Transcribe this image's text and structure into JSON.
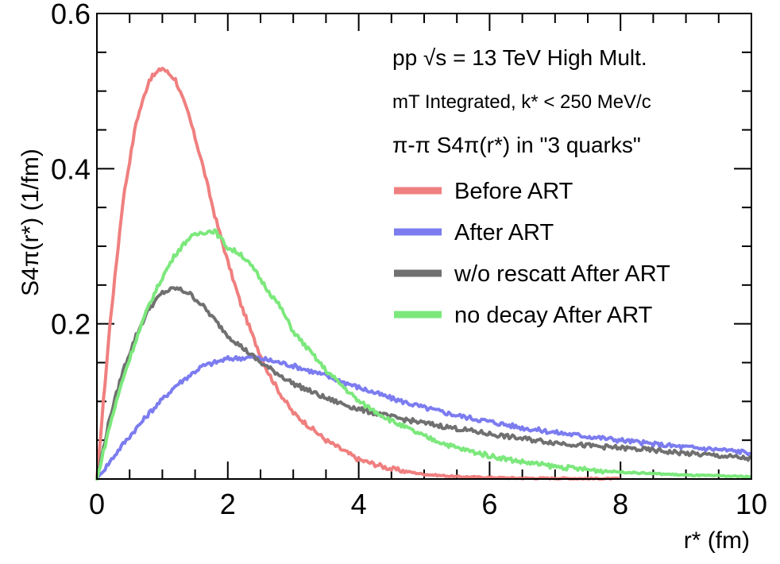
{
  "chart_data": {
    "type": "line",
    "xlabel": "r* (fm)",
    "ylabel": "S4π(r*) (1/fm)",
    "xlim": [
      0,
      10
    ],
    "ylim": [
      0,
      0.6
    ],
    "xticks": [
      0,
      2,
      4,
      6,
      8,
      10
    ],
    "yticks": [
      0.2,
      0.4,
      0.6
    ],
    "x_tick_labels": [
      "0",
      "2",
      "4",
      "6",
      "8",
      "10"
    ],
    "y_tick_labels": [
      "0.2",
      "0.4",
      "0.6"
    ],
    "annotations": {
      "line1": "pp √s = 13 TeV High Mult.",
      "line2": "mT Integrated, k* < 250 MeV/c",
      "line3": "π-π S4π(r*) in \"3 quarks\""
    },
    "legend_position": "top-right",
    "series": [
      {
        "name": "Before ART",
        "color": "#f07f7f",
        "x": [
          0,
          0.2,
          0.4,
          0.6,
          0.8,
          1.0,
          1.2,
          1.4,
          1.6,
          1.8,
          2.0,
          2.2,
          2.4,
          2.6,
          2.8,
          3.0,
          3.5,
          4.0,
          4.5,
          5.0,
          5.5,
          6.0,
          6.5,
          7.0,
          7.5,
          8.0
        ],
        "values": [
          0,
          0.2,
          0.36,
          0.46,
          0.515,
          0.53,
          0.515,
          0.47,
          0.41,
          0.34,
          0.28,
          0.225,
          0.18,
          0.14,
          0.11,
          0.085,
          0.05,
          0.025,
          0.013,
          0.006,
          0.003,
          0.002,
          0.001,
          0.001,
          0.0005,
          0.0003
        ]
      },
      {
        "name": "After ART",
        "color": "#7c7cf0",
        "x": [
          0,
          0.4,
          0.8,
          1.2,
          1.6,
          2.0,
          2.4,
          2.8,
          3.0,
          3.5,
          4.0,
          4.5,
          5.0,
          5.5,
          6.0,
          6.5,
          7.0,
          7.5,
          8.0,
          8.5,
          9.0,
          9.5,
          10.0
        ],
        "values": [
          0,
          0.045,
          0.085,
          0.12,
          0.145,
          0.155,
          0.157,
          0.15,
          0.146,
          0.133,
          0.118,
          0.104,
          0.092,
          0.082,
          0.074,
          0.066,
          0.06,
          0.055,
          0.05,
          0.045,
          0.041,
          0.038,
          0.034
        ]
      },
      {
        "name": "w/o rescatt After ART",
        "color": "#707070",
        "x": [
          0,
          0.2,
          0.4,
          0.6,
          0.8,
          1.0,
          1.2,
          1.4,
          1.6,
          1.8,
          2.0,
          2.5,
          3.0,
          3.5,
          4.0,
          4.5,
          5.0,
          5.5,
          6.0,
          6.5,
          7.0,
          7.5,
          8.0,
          8.5,
          9.0,
          9.5,
          10.0
        ],
        "values": [
          0,
          0.08,
          0.14,
          0.185,
          0.22,
          0.24,
          0.246,
          0.24,
          0.225,
          0.205,
          0.185,
          0.15,
          0.123,
          0.104,
          0.09,
          0.08,
          0.072,
          0.065,
          0.058,
          0.052,
          0.047,
          0.043,
          0.04,
          0.037,
          0.033,
          0.03,
          0.026
        ]
      },
      {
        "name": "no decay After ART",
        "color": "#7ce87c",
        "x": [
          0,
          0.2,
          0.4,
          0.6,
          0.8,
          1.0,
          1.2,
          1.4,
          1.6,
          1.8,
          2.0,
          2.2,
          2.4,
          2.6,
          2.8,
          3.0,
          3.5,
          4.0,
          4.5,
          5.0,
          5.5,
          6.0,
          6.5,
          7.0,
          7.5,
          8.0,
          8.5,
          9.0,
          9.5,
          10.0
        ],
        "values": [
          0,
          0.07,
          0.13,
          0.18,
          0.225,
          0.26,
          0.29,
          0.31,
          0.318,
          0.32,
          0.298,
          0.29,
          0.27,
          0.245,
          0.222,
          0.19,
          0.14,
          0.1,
          0.075,
          0.055,
          0.04,
          0.03,
          0.022,
          0.016,
          0.012,
          0.009,
          0.007,
          0.005,
          0.004,
          0.003
        ]
      }
    ]
  }
}
